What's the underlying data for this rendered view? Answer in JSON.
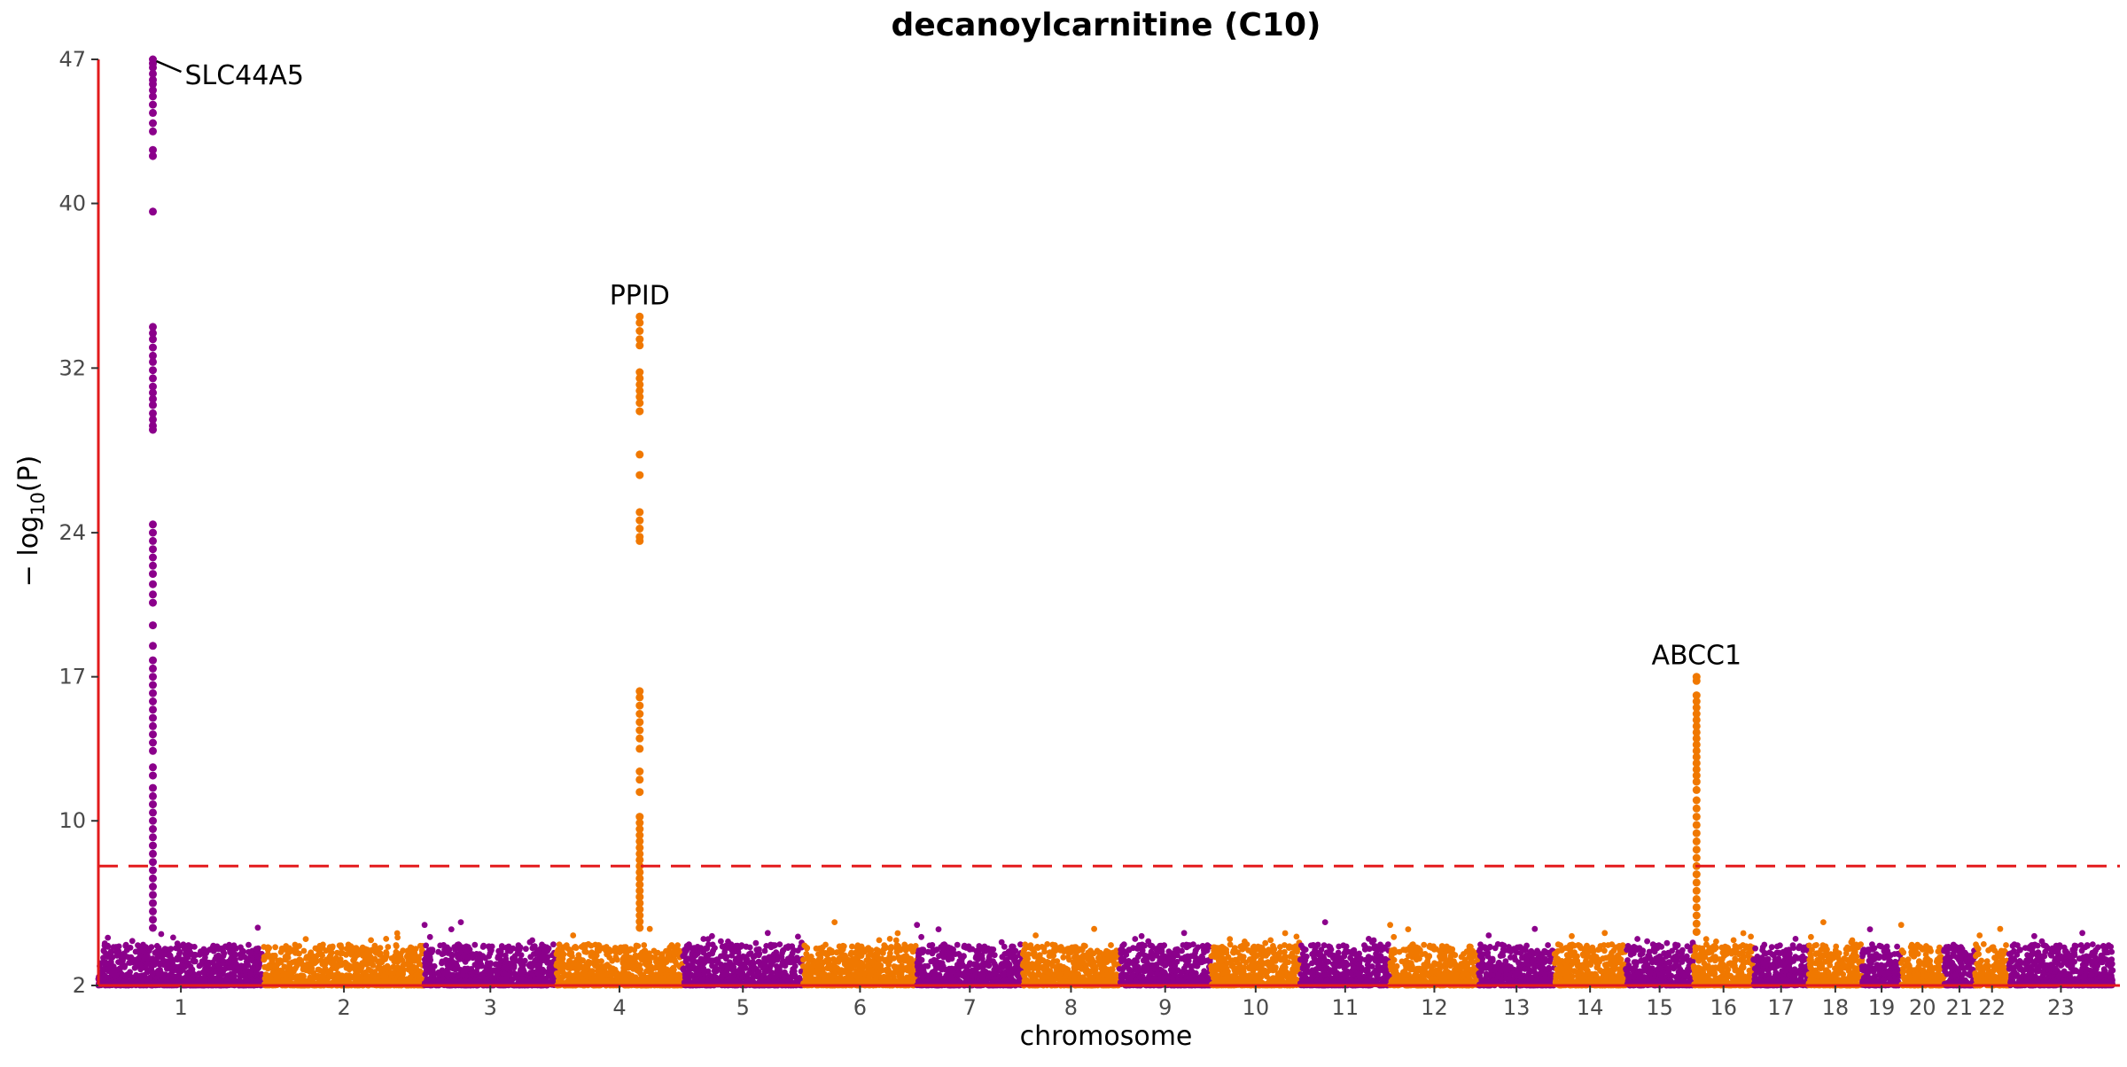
{
  "chart_data": {
    "type": "scatter",
    "subtype": "manhattan",
    "title": "decanoylcarnitine (C10)",
    "xlabel": "chromosome",
    "ylabel_base": "− log",
    "ylabel_sub": "10",
    "ylabel_var": "(P)",
    "ylim": [
      2,
      47
    ],
    "y_ticks": [
      2,
      10,
      17,
      24,
      32,
      40,
      47
    ],
    "significance_threshold": 7.8,
    "colors": {
      "odd_chromosome": "#8b008b",
      "even_chromosome": "#f07800",
      "axis": "#e31a1c",
      "threshold": "#e31a1c"
    },
    "chromosomes": [
      {
        "label": "1",
        "length": 248
      },
      {
        "label": "2",
        "length": 242
      },
      {
        "label": "3",
        "length": 198
      },
      {
        "label": "4",
        "length": 190
      },
      {
        "label": "5",
        "length": 181
      },
      {
        "label": "6",
        "length": 171
      },
      {
        "label": "7",
        "length": 159
      },
      {
        "label": "8",
        "length": 145
      },
      {
        "label": "9",
        "length": 138
      },
      {
        "label": "10",
        "length": 134
      },
      {
        "label": "11",
        "length": 135
      },
      {
        "label": "12",
        "length": 133
      },
      {
        "label": "13",
        "length": 114
      },
      {
        "label": "14",
        "length": 107
      },
      {
        "label": "15",
        "length": 102
      },
      {
        "label": "16",
        "length": 90
      },
      {
        "label": "17",
        "length": 83
      },
      {
        "label": "18",
        "length": 80
      },
      {
        "label": "19",
        "length": 59
      },
      {
        "label": "20",
        "length": 64
      },
      {
        "label": "21",
        "length": 47
      },
      {
        "label": "22",
        "length": 51
      },
      {
        "label": "23",
        "length": 156
      }
    ],
    "peaks": [
      {
        "chromosome": "1",
        "position": 0.33,
        "values": [
          47.0,
          46.8,
          46.6,
          46.3,
          46.0,
          45.8,
          45.5,
          45.2,
          44.8,
          44.4,
          43.9,
          43.5,
          42.6,
          42.3,
          39.6,
          34.0,
          33.7,
          33.4,
          33.0,
          32.6,
          32.3,
          31.9,
          31.5,
          31.1,
          30.8,
          30.5,
          30.2,
          29.8,
          29.5,
          29.2,
          29.0,
          24.4,
          24.0,
          23.6,
          23.2,
          22.8,
          22.4,
          22.0,
          21.5,
          21.0,
          20.6,
          19.5,
          18.5,
          17.8,
          17.4,
          17.0,
          16.6,
          16.2,
          15.8,
          15.4,
          15.0,
          14.6,
          14.2,
          13.8,
          13.4,
          12.6,
          12.2,
          11.6,
          11.2,
          10.8,
          10.4,
          10.0,
          9.6,
          9.2,
          8.8,
          8.4,
          8.0,
          7.6,
          7.2,
          6.8,
          6.4,
          6.0,
          5.6,
          5.2,
          4.8
        ],
        "label": "SLC44A5"
      },
      {
        "chromosome": "4",
        "position": 0.66,
        "values": [
          34.5,
          34.2,
          33.8,
          33.4,
          33.1,
          31.8,
          31.5,
          31.2,
          30.9,
          30.6,
          30.3,
          29.9,
          27.8,
          26.8,
          25.0,
          24.6,
          24.2,
          23.8,
          23.6,
          16.3,
          16.0,
          15.6,
          15.2,
          14.8,
          14.4,
          14.0,
          13.5,
          12.4,
          12.0,
          11.4,
          10.2,
          9.9,
          9.6,
          9.3,
          9.0,
          8.7,
          8.4,
          8.1,
          7.8,
          7.5,
          7.2,
          6.9,
          6.6,
          6.3,
          6.0,
          5.7,
          5.4,
          5.1,
          4.8
        ],
        "label": "PPID"
      },
      {
        "chromosome": "16",
        "position": 0.05,
        "values": [
          17.0,
          16.8,
          16.1,
          15.8,
          15.5,
          15.2,
          14.9,
          14.6,
          14.3,
          14.0,
          13.7,
          13.4,
          13.1,
          12.8,
          12.5,
          12.2,
          11.9,
          11.5,
          11.0,
          10.6,
          10.2,
          9.8,
          9.4,
          9.0,
          8.6,
          8.2,
          7.8,
          7.4,
          7.0,
          6.6,
          6.2,
          5.8,
          5.4,
          5.0,
          4.6
        ],
        "label": "ABCC1"
      }
    ]
  }
}
